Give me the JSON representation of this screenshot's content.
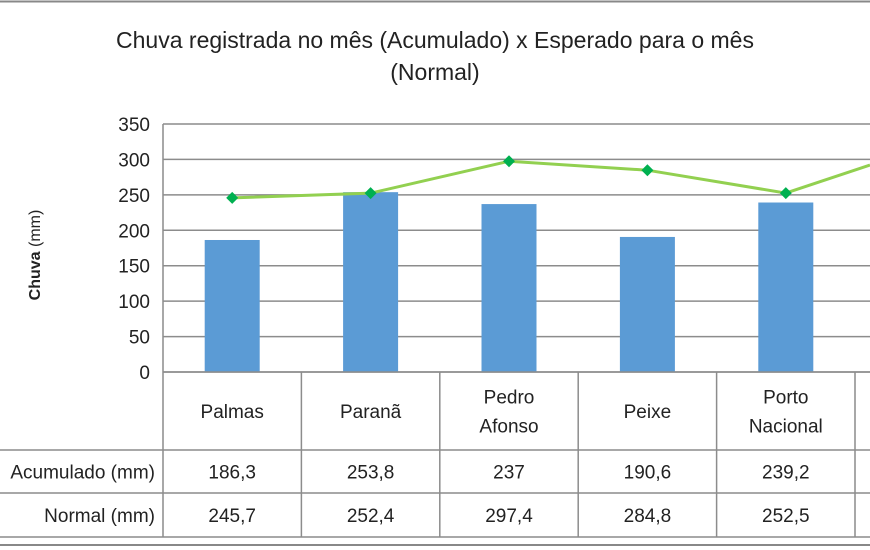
{
  "chart_data": {
    "type": "bar",
    "title_line1": "Chuva registrada  no mês (Acumulado)  x Esperado para o mês",
    "title_line2": "(Normal)",
    "ylabel_bold": "Chuva",
    "ylabel_unit": "(mm)",
    "ylim": [
      0,
      350
    ],
    "yticks": [
      "0",
      "50",
      "100",
      "150",
      "200",
      "250",
      "300",
      "350"
    ],
    "grid": true,
    "categories": [
      [
        "Palmas"
      ],
      [
        "Paranã"
      ],
      [
        "Pedro",
        "Afonso"
      ],
      [
        "Peixe"
      ],
      [
        "Porto",
        "Nacional"
      ]
    ],
    "series": [
      {
        "name": "Acumulado (mm)",
        "type": "bar",
        "color": "#5b9bd5",
        "values": [
          186.3,
          253.8,
          237,
          190.6,
          239.2
        ],
        "labels": [
          "186,3",
          "253,8",
          "237",
          "190,6",
          "239,2"
        ]
      },
      {
        "name": "Normal (mm)",
        "type": "line",
        "color": "#92d050",
        "marker_color": "#00b050",
        "values": [
          245.7,
          252.4,
          297.4,
          284.8,
          252.5
        ],
        "labels": [
          "245,7",
          "252,4",
          "297,4",
          "284,8",
          "252,5"
        ]
      }
    ],
    "legend": "data-table"
  }
}
